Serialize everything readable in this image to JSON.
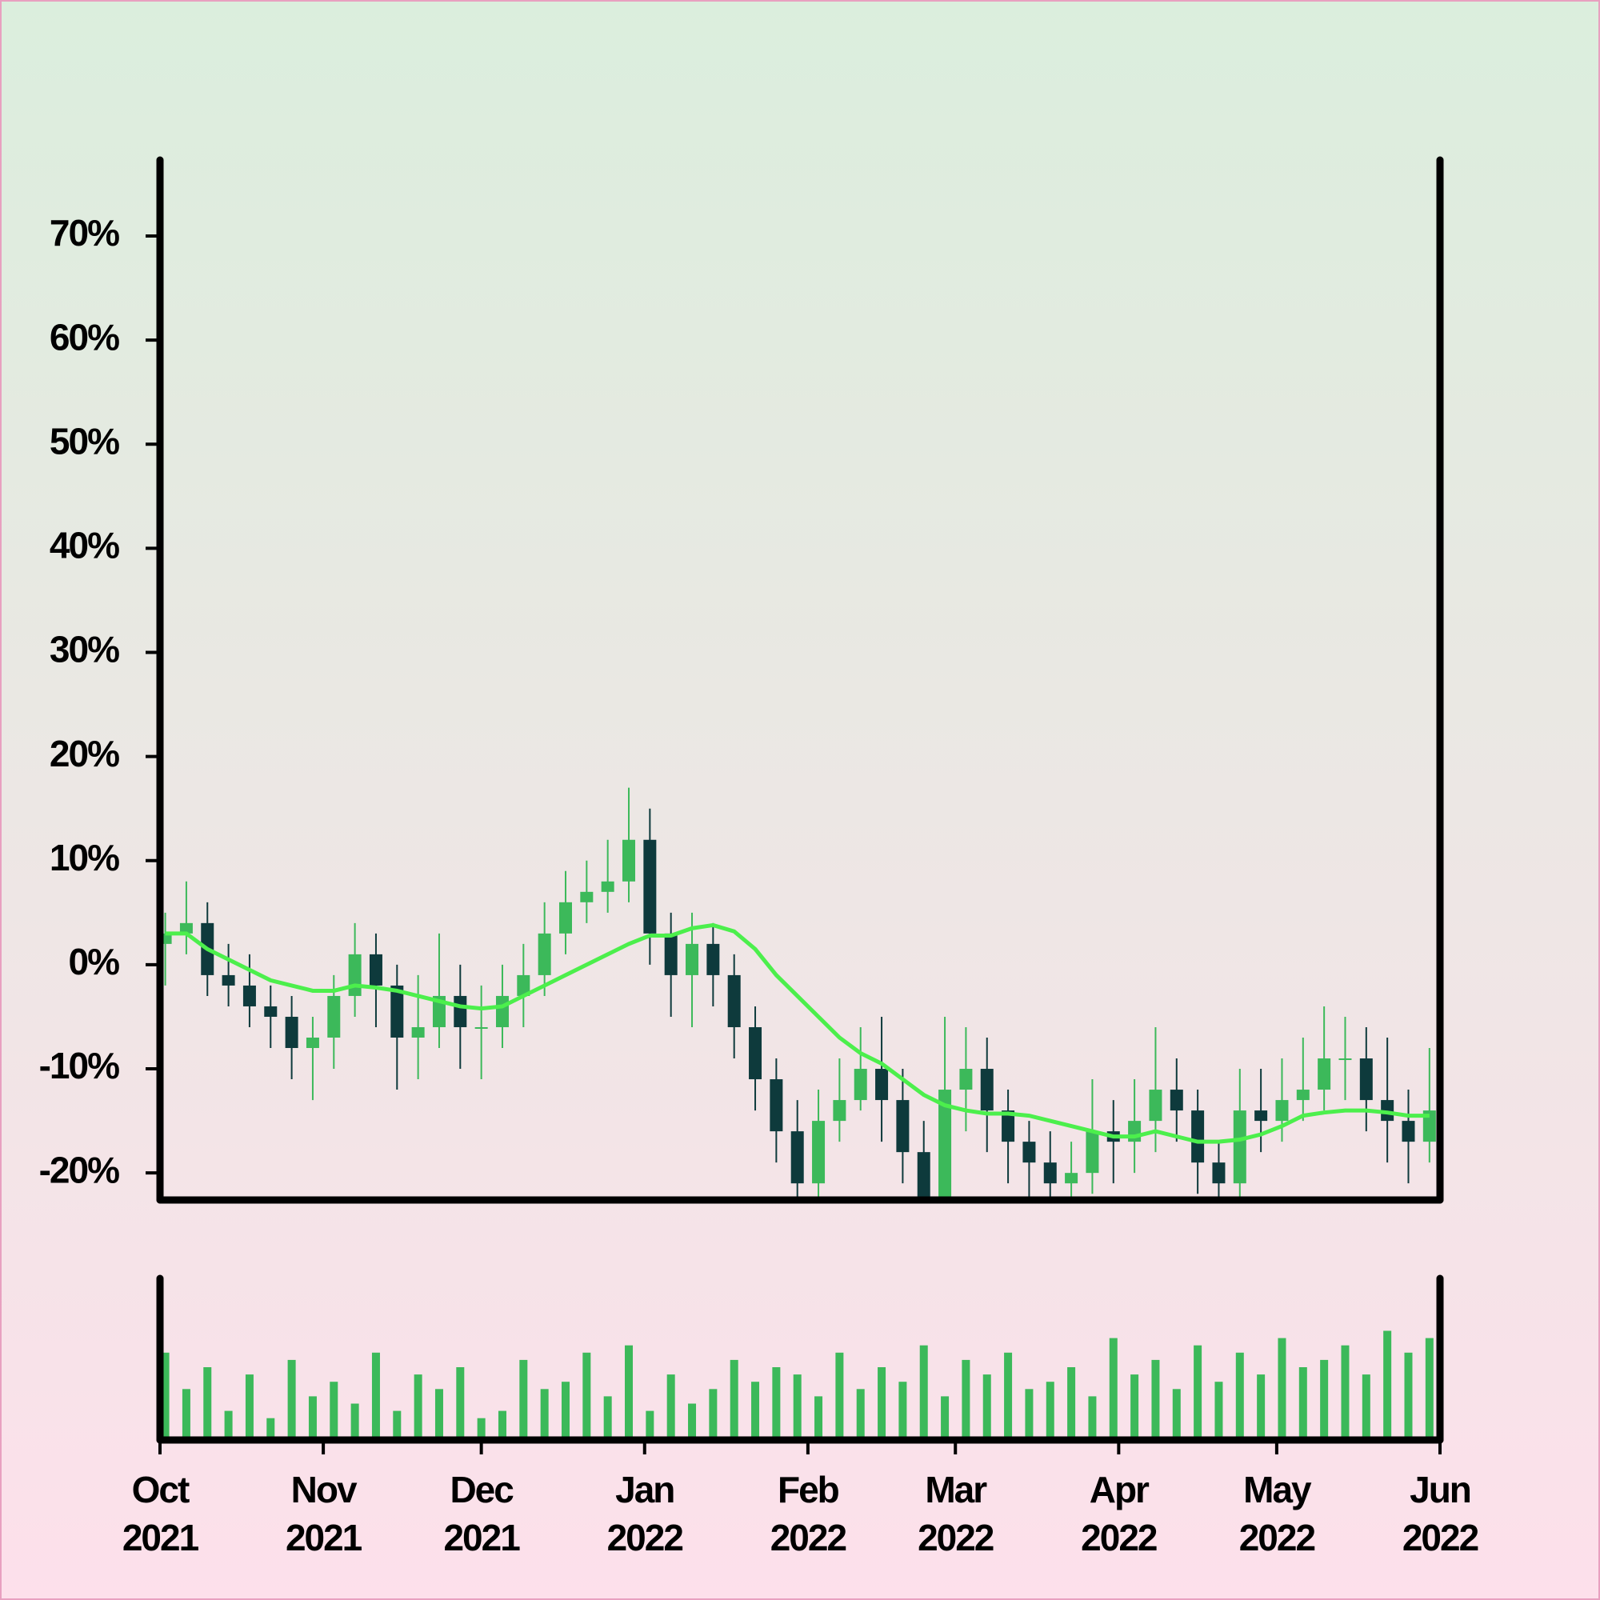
{
  "chart_data": {
    "type": "candlestick",
    "x": [
      1,
      5,
      9,
      13,
      17,
      21,
      25,
      29,
      33,
      37,
      41,
      45,
      49,
      53,
      57,
      61,
      65,
      69,
      73,
      77,
      81,
      85,
      89,
      93,
      97,
      101,
      105,
      109,
      113,
      117,
      121,
      125,
      129,
      133,
      137,
      141,
      145,
      149,
      153,
      157,
      161,
      165,
      169,
      173,
      177,
      181,
      185,
      189,
      193,
      197,
      201,
      205,
      209,
      213,
      217,
      221,
      225,
      229,
      233,
      237,
      241
    ],
    "open": [
      2,
      3,
      4,
      -1,
      -2,
      -4,
      -5,
      -8,
      -7,
      -3,
      1,
      -2,
      -7,
      -6,
      -3,
      -6,
      -6,
      -3,
      -1,
      3,
      6,
      7,
      8,
      12,
      3,
      -1,
      2,
      -1,
      -6,
      -11,
      -16,
      -21,
      -15,
      -13,
      -10,
      -13,
      -18,
      -23,
      -12,
      -10,
      -14,
      -17,
      -19,
      -21,
      -20,
      -16,
      -17,
      -15,
      -12,
      -14,
      -19,
      -21,
      -14,
      -15,
      -13,
      -12,
      -9,
      -9,
      -13,
      -15,
      -17
    ],
    "high": [
      5,
      8,
      6,
      2,
      1,
      -2,
      -3,
      -5,
      -1,
      4,
      3,
      0,
      -1,
      3,
      0,
      -2,
      0,
      2,
      6,
      9,
      10,
      12,
      17,
      15,
      5,
      5,
      4,
      1,
      -4,
      -9,
      -13,
      -12,
      -9,
      -6,
      -5,
      -10,
      -15,
      -5,
      -6,
      -7,
      -12,
      -15,
      -16,
      -17,
      -11,
      -13,
      -11,
      -6,
      -9,
      -12,
      -17,
      -10,
      -10,
      -9,
      -7,
      -4,
      -5,
      -6,
      -7,
      -12,
      -8
    ],
    "low": [
      -2,
      1,
      -3,
      -4,
      -6,
      -8,
      -11,
      -13,
      -10,
      -5,
      -6,
      -12,
      -11,
      -8,
      -10,
      -11,
      -8,
      -6,
      -3,
      1,
      4,
      5,
      6,
      0,
      -5,
      -6,
      -4,
      -9,
      -14,
      -19,
      -24,
      -24,
      -17,
      -14,
      -17,
      -21,
      -26,
      -25,
      -16,
      -18,
      -21,
      -23,
      -24,
      -24,
      -22,
      -21,
      -20,
      -18,
      -17,
      -22,
      -24,
      -23,
      -18,
      -17,
      -15,
      -14,
      -13,
      -16,
      -19,
      -21,
      -19
    ],
    "close": [
      3,
      4,
      -1,
      -2,
      -4,
      -5,
      -8,
      -7,
      -3,
      1,
      -2,
      -7,
      -6,
      -3,
      -6,
      -6,
      -3,
      -1,
      3,
      6,
      7,
      8,
      12,
      3,
      -1,
      2,
      -1,
      -6,
      -11,
      -16,
      -21,
      -15,
      -13,
      -10,
      -13,
      -18,
      -23,
      -12,
      -10,
      -14,
      -17,
      -19,
      -21,
      -20,
      -16,
      -17,
      -15,
      -12,
      -14,
      -19,
      -21,
      -14,
      -15,
      -13,
      -12,
      -9,
      -9,
      -13,
      -15,
      -17,
      -14
    ],
    "up_color": "#3cb95a",
    "down_color": "#0e3a3c",
    "ma": {
      "color": "#4cef4c",
      "values": [
        3,
        3,
        1.5,
        0.5,
        -0.5,
        -1.5,
        -2,
        -2.5,
        -2.5,
        -2,
        -2.2,
        -2.5,
        -3,
        -3.5,
        -4,
        -4.2,
        -4,
        -3,
        -2,
        -1,
        0,
        1,
        2,
        2.8,
        2.8,
        3.5,
        3.8,
        3.2,
        1.5,
        -1,
        -3,
        -5,
        -7,
        -8.5,
        -9.5,
        -11,
        -12.5,
        -13.5,
        -14,
        -14.3,
        -14.3,
        -14.5,
        -15,
        -15.5,
        -16,
        -16.5,
        -16.5,
        -16,
        -16.5,
        -17,
        -17,
        -16.8,
        -16.3,
        -15.5,
        -14.5,
        -14.2,
        -14,
        -14,
        -14.2,
        -14.5,
        -14.5
      ]
    },
    "volume": {
      "color": "#3cb95a",
      "ylim": [
        0,
        100
      ],
      "values": [
        60,
        35,
        50,
        20,
        45,
        15,
        55,
        30,
        40,
        25,
        60,
        20,
        45,
        35,
        50,
        15,
        20,
        55,
        35,
        40,
        60,
        30,
        65,
        20,
        45,
        25,
        35,
        55,
        40,
        50,
        45,
        30,
        60,
        35,
        50,
        40,
        65,
        30,
        55,
        45,
        60,
        35,
        40,
        50,
        30,
        70,
        45,
        55,
        35,
        65,
        40,
        60,
        45,
        70,
        50,
        55,
        65,
        45,
        75,
        60,
        70
      ]
    },
    "xlim": [
      0,
      243
    ],
    "xticks": [
      {
        "value": 0,
        "label": "Oct 2021"
      },
      {
        "value": 31,
        "label": "Nov 2021"
      },
      {
        "value": 61,
        "label": "Dec 2021"
      },
      {
        "value": 92,
        "label": "Jan 2022"
      },
      {
        "value": 123,
        "label": "Feb 2022"
      },
      {
        "value": 151,
        "label": "Mar 2022"
      },
      {
        "value": 182,
        "label": "Apr 2022"
      },
      {
        "value": 212,
        "label": "May 2022"
      },
      {
        "value": 243,
        "label": "Jun 2022"
      }
    ],
    "ylim": [
      -22.6,
      77.3
    ],
    "yticks": [
      {
        "value": -20,
        "label": "-20%"
      },
      {
        "value": -10,
        "label": "-10%"
      },
      {
        "value": 0,
        "label": "0%"
      },
      {
        "value": 10,
        "label": "10%"
      },
      {
        "value": 20,
        "label": "20%"
      },
      {
        "value": 30,
        "label": "30%"
      },
      {
        "value": 40,
        "label": "40%"
      },
      {
        "value": 50,
        "label": "50%"
      },
      {
        "value": 60,
        "label": "60%"
      },
      {
        "value": 70,
        "label": "70%"
      }
    ]
  }
}
